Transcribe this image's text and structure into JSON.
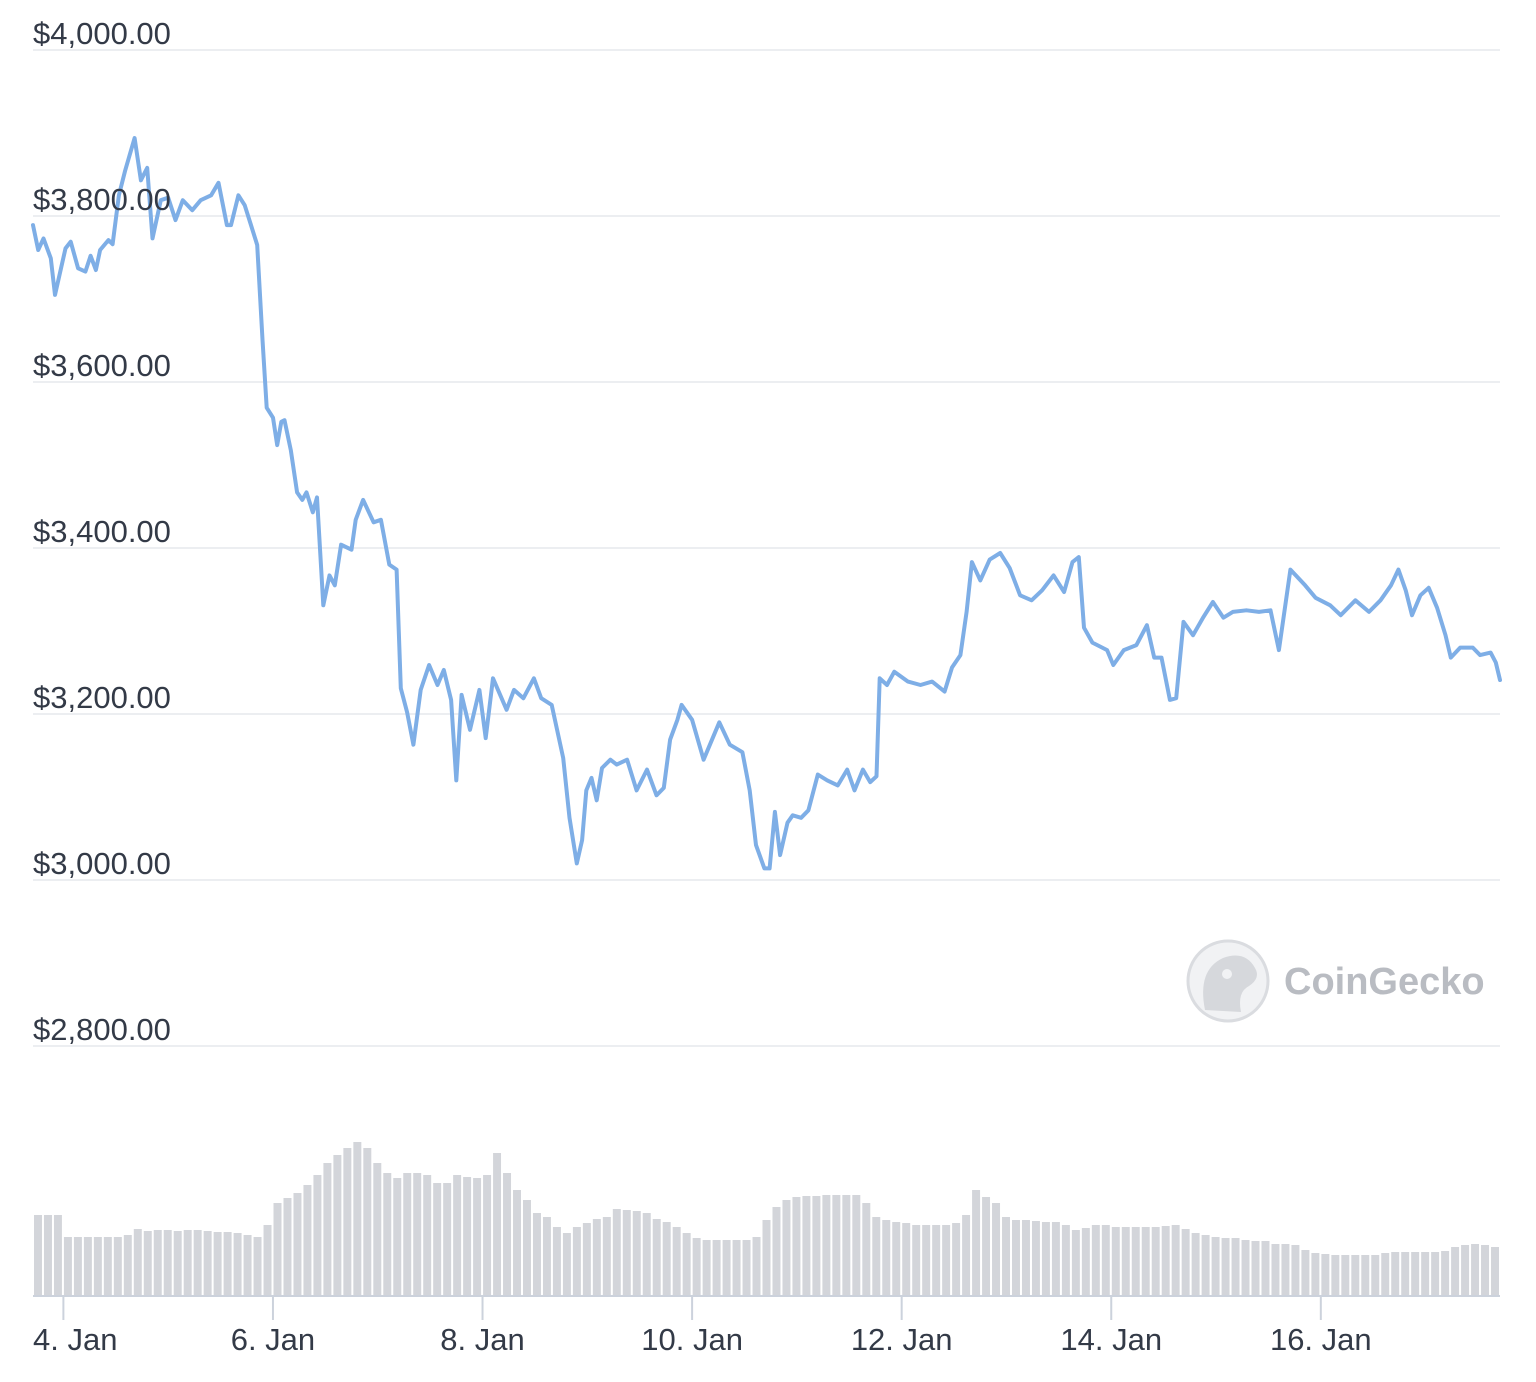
{
  "chart_data": {
    "type": "line",
    "watermark": "CoinGecko",
    "xlim": [
      3.71,
      17.71
    ],
    "xticks": [
      {
        "value": 4,
        "label": "4. Jan"
      },
      {
        "value": 6,
        "label": "6. Jan"
      },
      {
        "value": 8,
        "label": "8. Jan"
      },
      {
        "value": 10,
        "label": "10. Jan"
      },
      {
        "value": 12,
        "label": "12. Jan"
      },
      {
        "value": 14,
        "label": "14. Jan"
      },
      {
        "value": 16,
        "label": "16. Jan"
      }
    ],
    "ylim": [
      2800,
      4000
    ],
    "yticks": [
      {
        "value": 2800,
        "label": "$2,800.00"
      },
      {
        "value": 3000,
        "label": "$3,000.00"
      },
      {
        "value": 3200,
        "label": "$3,200.00"
      },
      {
        "value": 3400,
        "label": "$3,400.00"
      },
      {
        "value": 3600,
        "label": "$3,600.00"
      },
      {
        "value": 3800,
        "label": "$3,800.00"
      },
      {
        "value": 4000,
        "label": "$4,000.00"
      }
    ],
    "grid": true,
    "x": [
      3.71,
      3.76,
      3.81,
      3.88,
      3.92,
      4.02,
      4.07,
      4.14,
      4.21,
      4.26,
      4.31,
      4.35,
      4.43,
      4.47,
      4.53,
      4.59,
      4.68,
      4.74,
      4.8,
      4.85,
      4.93,
      5.0,
      5.07,
      5.14,
      5.23,
      5.31,
      5.41,
      5.48,
      5.56,
      5.6,
      5.67,
      5.73,
      5.79,
      5.85,
      5.9,
      5.94,
      6.0,
      6.04,
      6.08,
      6.11,
      6.17,
      6.23,
      6.28,
      6.32,
      6.38,
      6.42,
      6.48,
      6.54,
      6.59,
      6.65,
      6.75,
      6.79,
      6.86,
      6.96,
      7.03,
      7.11,
      7.18,
      7.22,
      7.28,
      7.34,
      7.41,
      7.49,
      7.57,
      7.63,
      7.7,
      7.75,
      7.8,
      7.88,
      7.97,
      8.03,
      8.1,
      8.23,
      8.3,
      8.39,
      8.49,
      8.56,
      8.66,
      8.77,
      8.83,
      8.9,
      8.95,
      8.99,
      9.04,
      9.09,
      9.14,
      9.22,
      9.28,
      9.38,
      9.47,
      9.57,
      9.66,
      9.73,
      9.79,
      9.86,
      9.9,
      10.0,
      10.11,
      10.19,
      10.26,
      10.36,
      10.48,
      10.55,
      10.61,
      10.69,
      10.74,
      10.79,
      10.84,
      10.91,
      10.96,
      11.04,
      11.11,
      11.2,
      11.29,
      11.39,
      11.48,
      11.55,
      11.63,
      11.7,
      11.76,
      11.79,
      11.86,
      11.93,
      12.06,
      12.18,
      12.29,
      12.41,
      12.48,
      12.56,
      12.62,
      12.67,
      12.75,
      12.84,
      12.94,
      13.03,
      13.13,
      13.24,
      13.34,
      13.45,
      13.55,
      13.63,
      13.69,
      13.74,
      13.82,
      13.96,
      14.02,
      14.12,
      14.24,
      14.34,
      14.41,
      14.48,
      14.56,
      14.62,
      14.69,
      14.78,
      14.88,
      14.97,
      15.07,
      15.16,
      15.29,
      15.41,
      15.52,
      15.6,
      15.71,
      15.85,
      15.95,
      16.09,
      16.19,
      16.33,
      16.46,
      16.57,
      16.67,
      16.74,
      16.81,
      16.87,
      16.95,
      17.03,
      17.11,
      17.19,
      17.24,
      17.33,
      17.45,
      17.52,
      17.62,
      17.67,
      17.71
    ],
    "series": [
      {
        "color": "#7eaee6",
        "values": [
          3789,
          3759,
          3773,
          3749,
          3705,
          3761,
          3769,
          3737,
          3733,
          3752,
          3735,
          3759,
          3771,
          3766,
          3825,
          3855,
          3894,
          3843,
          3858,
          3773,
          3819,
          3822,
          3795,
          3819,
          3807,
          3819,
          3825,
          3840,
          3789,
          3789,
          3825,
          3813,
          3789,
          3765,
          3651,
          3569,
          3557,
          3524,
          3552,
          3554,
          3518,
          3467,
          3458,
          3467,
          3443,
          3461,
          3331,
          3367,
          3355,
          3404,
          3398,
          3434,
          3458,
          3431,
          3434,
          3380,
          3374,
          3231,
          3202,
          3163,
          3229,
          3259,
          3235,
          3253,
          3217,
          3120,
          3223,
          3181,
          3229,
          3171,
          3243,
          3205,
          3229,
          3219,
          3243,
          3219,
          3211,
          3147,
          3075,
          3020,
          3048,
          3108,
          3123,
          3096,
          3135,
          3145,
          3139,
          3145,
          3108,
          3133,
          3102,
          3111,
          3169,
          3193,
          3211,
          3193,
          3145,
          3169,
          3190,
          3163,
          3154,
          3108,
          3042,
          3014,
          3014,
          3082,
          3030,
          3069,
          3078,
          3075,
          3084,
          3127,
          3120,
          3114,
          3133,
          3108,
          3133,
          3118,
          3125,
          3243,
          3235,
          3251,
          3239,
          3235,
          3239,
          3227,
          3256,
          3271,
          3323,
          3383,
          3361,
          3386,
          3394,
          3376,
          3343,
          3337,
          3349,
          3367,
          3347,
          3383,
          3389,
          3304,
          3286,
          3277,
          3259,
          3277,
          3283,
          3307,
          3268,
          3268,
          3217,
          3219,
          3311,
          3295,
          3317,
          3335,
          3316,
          3323,
          3325,
          3323,
          3325,
          3277,
          3374,
          3355,
          3340,
          3331,
          3319,
          3337,
          3323,
          3337,
          3355,
          3374,
          3349,
          3319,
          3343,
          3352,
          3328,
          3295,
          3268,
          3280,
          3280,
          3271,
          3274,
          3262,
          3241
        ]
      }
    ],
    "volume": {
      "color": "#d3d5da",
      "values": [
        80,
        80,
        80,
        58,
        58,
        58,
        58,
        58,
        58,
        60,
        66,
        64,
        65,
        65,
        64,
        65,
        65,
        64,
        63,
        63,
        62,
        60,
        58,
        70,
        92,
        97,
        102,
        110,
        120,
        132,
        140,
        147,
        153,
        147,
        132,
        122,
        117,
        122,
        122,
        120,
        112,
        112,
        120,
        118,
        117,
        120,
        142,
        122,
        105,
        95,
        82,
        78,
        68,
        62,
        68,
        72,
        76,
        78,
        86,
        85,
        84,
        82,
        76,
        73,
        68,
        62,
        57,
        55,
        55,
        55,
        55,
        55,
        58,
        75,
        88,
        95,
        98,
        99,
        99,
        100,
        100,
        100,
        100,
        92,
        78,
        75,
        73,
        72,
        70,
        70,
        70,
        70,
        72,
        80,
        105,
        98,
        92,
        78,
        75,
        75,
        74,
        73,
        73,
        70,
        65,
        67,
        70,
        70,
        68,
        68,
        68,
        68,
        68,
        69,
        70,
        66,
        62,
        60,
        58,
        57,
        57,
        55,
        54,
        54,
        51,
        51,
        50,
        45,
        42,
        41,
        40,
        40,
        40,
        40,
        40,
        42,
        43,
        43,
        43,
        43,
        43,
        44,
        48,
        50,
        51,
        50,
        48
      ]
    }
  }
}
